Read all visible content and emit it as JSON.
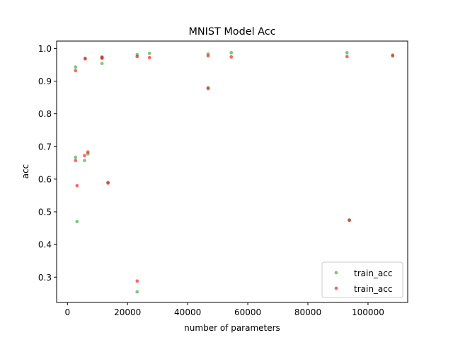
{
  "chart_data": {
    "type": "scatter",
    "title": "MNIST Model Acc",
    "xlabel": "number of parameters",
    "ylabel": "acc",
    "xlim": [
      -3600,
      113200
    ],
    "ylim": [
      0.2225,
      1.0225
    ],
    "xticks": [
      0,
      20000,
      40000,
      60000,
      80000,
      100000
    ],
    "xtick_labels": [
      "0",
      "20000",
      "40000",
      "60000",
      "80000",
      "100000"
    ],
    "yticks": [
      0.3,
      0.4,
      0.5,
      0.6,
      0.7,
      0.8,
      0.9,
      1.0
    ],
    "ytick_labels": [
      "0.3",
      "0.4",
      "0.5",
      "0.6",
      "0.7",
      "0.8",
      "0.9",
      "1.0"
    ],
    "grid": false,
    "legend_position": "lower-right",
    "series": [
      {
        "name": "train_acc",
        "color": "#2ca02c",
        "alpha": 0.6,
        "points": [
          [
            2700,
            0.943
          ],
          [
            2700,
            0.667
          ],
          [
            3200,
            0.47
          ],
          [
            5700,
            0.657
          ],
          [
            5900,
            0.97
          ],
          [
            6800,
            0.677
          ],
          [
            11500,
            0.974
          ],
          [
            11500,
            0.954
          ],
          [
            13500,
            0.59
          ],
          [
            23200,
            0.981
          ],
          [
            23200,
            0.255
          ],
          [
            27300,
            0.985
          ],
          [
            46800,
            0.983
          ],
          [
            46800,
            0.88
          ],
          [
            54500,
            0.987
          ],
          [
            93000,
            0.987
          ],
          [
            93800,
            0.475
          ],
          [
            108200,
            0.98
          ]
        ]
      },
      {
        "name": "train_acc",
        "color": "#ff0000",
        "alpha": 0.6,
        "points": [
          [
            2700,
            0.932
          ],
          [
            2700,
            0.657
          ],
          [
            3200,
            0.58
          ],
          [
            5700,
            0.672
          ],
          [
            5900,
            0.968
          ],
          [
            6800,
            0.683
          ],
          [
            11500,
            0.97
          ],
          [
            11500,
            0.972
          ],
          [
            13500,
            0.588
          ],
          [
            23200,
            0.975
          ],
          [
            23200,
            0.288
          ],
          [
            27300,
            0.972
          ],
          [
            46800,
            0.977
          ],
          [
            46800,
            0.877
          ],
          [
            54500,
            0.974
          ],
          [
            93000,
            0.975
          ],
          [
            93800,
            0.474
          ],
          [
            108200,
            0.977
          ]
        ]
      }
    ]
  }
}
